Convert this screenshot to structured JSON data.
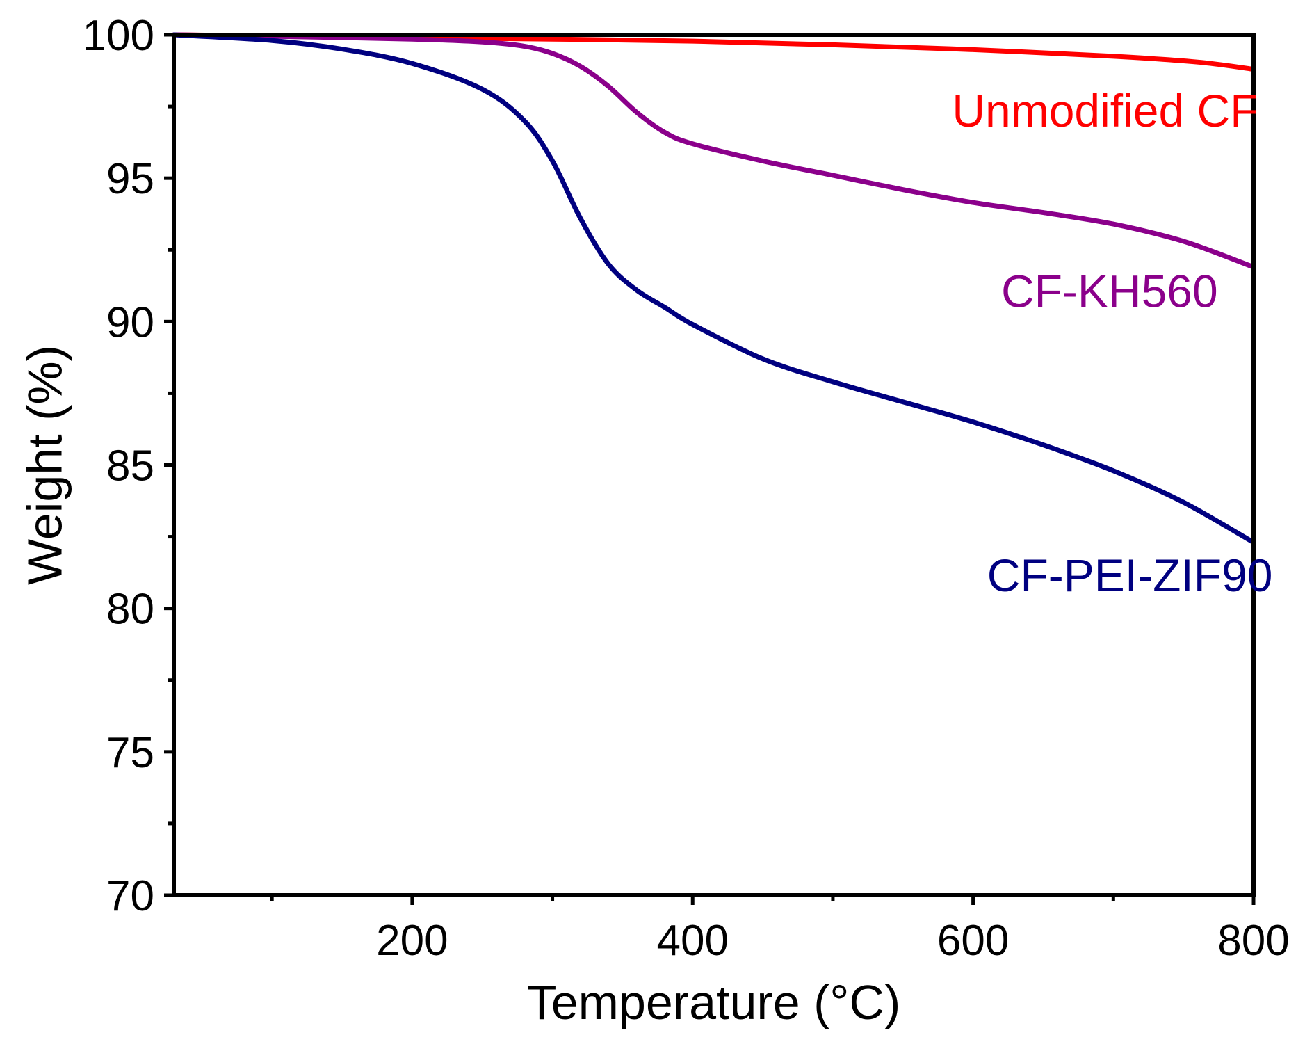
{
  "chart_data": {
    "type": "line",
    "title": "",
    "xlabel": "Temperature (°C)",
    "ylabel": "Weight (%)",
    "xlim": [
      30,
      800
    ],
    "ylim": [
      70,
      100
    ],
    "xticks": [
      200,
      400,
      600,
      800
    ],
    "xtick_labels": [
      "200",
      "400",
      "600",
      "800"
    ],
    "x_minor_ticks": [
      100,
      300,
      500,
      700
    ],
    "yticks": [
      70,
      75,
      80,
      85,
      90,
      95,
      100
    ],
    "ytick_labels": [
      "70",
      "75",
      "80",
      "85",
      "90",
      "95",
      "100"
    ],
    "y_minor_ticks": [
      72.5,
      77.5,
      82.5,
      87.5,
      92.5,
      97.5
    ],
    "grid": false,
    "series": [
      {
        "name": "Unmodified CF",
        "color": "#ff0000",
        "x": [
          30,
          100,
          200,
          300,
          400,
          500,
          600,
          700,
          760,
          800
        ],
        "y": [
          100,
          99.96,
          99.9,
          99.85,
          99.78,
          99.65,
          99.48,
          99.25,
          99.05,
          98.8
        ]
      },
      {
        "name": "CF-KH560",
        "color": "#8b008b",
        "x": [
          30,
          100,
          200,
          250,
          280,
          300,
          320,
          340,
          360,
          380,
          400,
          450,
          500,
          550,
          600,
          650,
          700,
          750,
          800
        ],
        "y": [
          100,
          99.95,
          99.85,
          99.75,
          99.6,
          99.35,
          98.9,
          98.2,
          97.3,
          96.6,
          96.2,
          95.6,
          95.1,
          94.6,
          94.15,
          93.8,
          93.4,
          92.8,
          91.9
        ]
      },
      {
        "name": "CF-PEI-ZIF90",
        "color": "#000080",
        "x": [
          30,
          100,
          150,
          200,
          250,
          280,
          300,
          320,
          340,
          360,
          380,
          400,
          450,
          500,
          550,
          600,
          650,
          700,
          750,
          800
        ],
        "y": [
          100,
          99.8,
          99.5,
          99.0,
          98.1,
          97.0,
          95.6,
          93.6,
          92.0,
          91.1,
          90.5,
          89.9,
          88.7,
          87.9,
          87.2,
          86.5,
          85.7,
          84.8,
          83.7,
          82.3
        ]
      }
    ],
    "annotations": [
      {
        "text": "Unmodified CF",
        "series": "Unmodified CF",
        "x": 585,
        "y": 96.8
      },
      {
        "text": "CF-KH560",
        "series": "CF-KH560",
        "x": 620,
        "y": 90.5
      },
      {
        "text": "CF-PEI-ZIF90",
        "series": "CF-PEI-ZIF90",
        "x": 610,
        "y": 80.6
      }
    ]
  }
}
